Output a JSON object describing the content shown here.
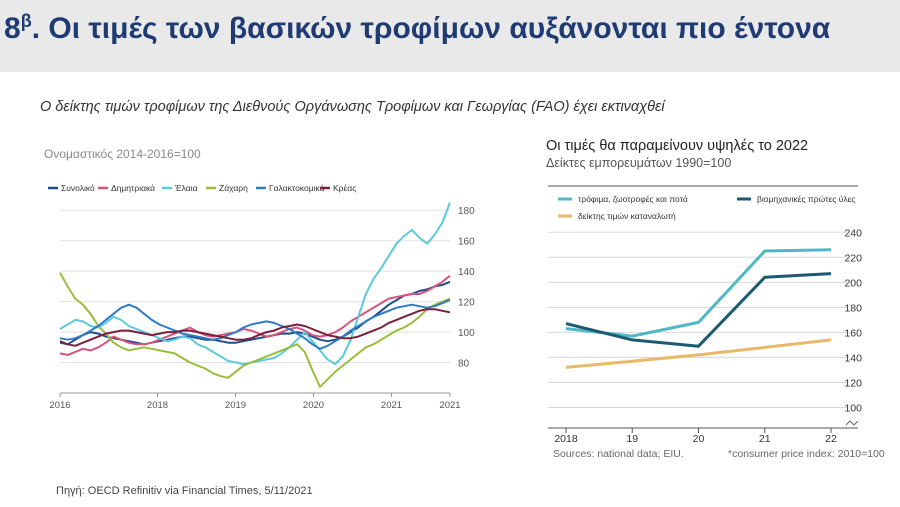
{
  "header": {
    "title_main": "8",
    "title_sup": "β",
    "title_rest": ". Οι τιμές των βασικών τροφίμων αυξάνονται πιο έντονα"
  },
  "subtitle": "Ο δείκτης τιμών τροφίμων της Διεθνούς Οργάνωσης Τροφίμων και Γεωργίας (FAO) έχει εκτιναχθεί",
  "source": "Πηγή: OECD Refinitiv via Financial  Times, 5/11/2021",
  "chart_data": [
    {
      "type": "line",
      "title": "Ονομαστικός 2014-2016=100",
      "x_ticks": [
        "2016",
        "2018",
        "2019",
        "2020",
        "2021",
        "2021"
      ],
      "y_ticks": [
        80,
        100,
        120,
        140,
        160,
        180
      ],
      "ylim": [
        60,
        190
      ],
      "series": [
        {
          "name": "Συνολικό",
          "color": "#1f4e8c",
          "values": [
            93,
            92,
            95,
            98,
            100,
            99,
            97,
            96,
            95,
            94,
            93,
            92,
            93,
            94,
            95,
            96,
            97,
            97,
            96,
            95,
            95,
            94,
            93,
            93,
            94,
            95,
            96,
            97,
            98,
            99,
            99,
            100,
            99,
            97,
            95,
            94,
            95,
            97,
            100,
            103,
            107,
            110,
            114,
            118,
            121,
            124,
            125,
            127,
            128,
            130,
            131,
            133
          ]
        },
        {
          "name": "Δημητριακά",
          "color": "#d9527a",
          "values": [
            86,
            85,
            87,
            89,
            88,
            90,
            93,
            97,
            95,
            93,
            92,
            92,
            93,
            95,
            97,
            99,
            101,
            103,
            100,
            98,
            97,
            98,
            99,
            100,
            102,
            101,
            99,
            97,
            98,
            100,
            102,
            103,
            101,
            98,
            97,
            98,
            100,
            103,
            107,
            110,
            113,
            116,
            119,
            122,
            123,
            124,
            125,
            125,
            127,
            130,
            133,
            137
          ]
        },
        {
          "name": "Έλαια",
          "color": "#5cc9dd",
          "values": [
            102,
            105,
            108,
            107,
            104,
            103,
            106,
            110,
            108,
            104,
            102,
            100,
            98,
            96,
            94,
            95,
            97,
            96,
            92,
            90,
            87,
            84,
            81,
            80,
            79,
            80,
            81,
            82,
            83,
            86,
            90,
            95,
            100,
            94,
            88,
            82,
            79,
            84,
            95,
            110,
            125,
            135,
            142,
            150,
            158,
            163,
            167,
            162,
            158,
            164,
            172,
            185
          ]
        },
        {
          "name": "Ζάχαρη",
          "color": "#9bbd3c",
          "values": [
            139,
            130,
            122,
            118,
            112,
            104,
            99,
            93,
            90,
            88,
            89,
            90,
            89,
            88,
            87,
            86,
            83,
            80,
            78,
            76,
            73,
            71,
            70,
            74,
            78,
            80,
            82,
            84,
            86,
            88,
            90,
            92,
            87,
            75,
            64,
            69,
            74,
            78,
            82,
            86,
            90,
            92,
            95,
            98,
            101,
            103,
            106,
            110,
            115,
            118,
            120,
            122
          ]
        },
        {
          "name": "Γαλακτοκομικά",
          "color": "#2e7bc4",
          "values": [
            96,
            95,
            96,
            98,
            101,
            104,
            108,
            112,
            116,
            118,
            116,
            112,
            108,
            105,
            103,
            101,
            99,
            98,
            97,
            96,
            95,
            96,
            98,
            100,
            103,
            105,
            106,
            107,
            106,
            104,
            102,
            99,
            96,
            92,
            89,
            91,
            94,
            97,
            101,
            104,
            107,
            110,
            112,
            114,
            116,
            117,
            118,
            117,
            116,
            117,
            119,
            121
          ]
        },
        {
          "name": "Κρέας",
          "color": "#7a1f3d",
          "values": [
            94,
            92,
            91,
            93,
            95,
            97,
            99,
            100,
            101,
            101,
            100,
            99,
            98,
            99,
            100,
            100,
            101,
            101,
            100,
            99,
            98,
            97,
            96,
            95,
            95,
            96,
            98,
            100,
            101,
            103,
            104,
            105,
            104,
            102,
            100,
            98,
            97,
            96,
            96,
            97,
            99,
            101,
            103,
            106,
            108,
            110,
            112,
            114,
            115,
            115,
            114,
            113
          ]
        }
      ]
    },
    {
      "type": "line",
      "title": "Οι τιμές θα παραμείνουν υψηλές το 2022",
      "subtitle": "Δείκτες εμπορευμάτων 1990=100",
      "x": [
        "2018",
        "19",
        "20",
        "21",
        "22"
      ],
      "y_ticks": [
        100,
        120,
        140,
        160,
        180,
        200,
        220,
        240
      ],
      "ylim": [
        90,
        245
      ],
      "source_left": "Sources: national data; EIU.",
      "source_right": "*consumer price index: 2010=100",
      "series": [
        {
          "name": "τρόφιμα, ζωοτροφές και ποτά",
          "color": "#4fb8c6",
          "values": [
            163,
            157,
            168,
            225,
            226
          ]
        },
        {
          "name": "βιομηχανικές πρώτες ύλες",
          "color": "#1d5a72",
          "values": [
            167,
            154,
            149,
            204,
            207
          ]
        },
        {
          "name": "δείκτης τιμών καταναλωτή",
          "color": "#e9b96a",
          "values": [
            132,
            137,
            142,
            148,
            154
          ]
        }
      ]
    }
  ]
}
